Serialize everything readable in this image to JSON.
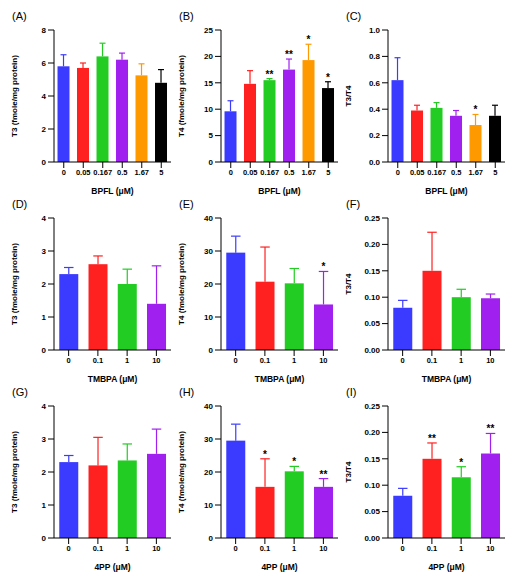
{
  "chart_data": [
    {
      "type": "bar",
      "title": "(A)",
      "x_label": "BPFL (μM)",
      "y_label": "T3 (fmole/mg protein)",
      "categories": [
        "0",
        "0.05",
        "0.167",
        "0.5",
        "1.67",
        "5"
      ],
      "values": [
        5.8,
        5.7,
        6.4,
        6.2,
        5.25,
        4.8
      ],
      "errors": [
        0.7,
        0.3,
        0.8,
        0.4,
        0.7,
        0.8
      ],
      "significance": [
        null,
        null,
        null,
        null,
        null,
        null
      ],
      "colors": [
        "#3b3bff",
        "#ff2020",
        "#22cc22",
        "#a020f0",
        "#ff9900",
        "#000000"
      ],
      "ylim": [
        0,
        8
      ],
      "yticks": [
        0,
        2,
        4,
        6,
        8
      ]
    },
    {
      "type": "bar",
      "title": "(B)",
      "x_label": "BPFL (μM)",
      "y_label": "T4 (fmole/mg protein)",
      "categories": [
        "0",
        "0.05",
        "0.167",
        "0.5",
        "1.67",
        "5"
      ],
      "values": [
        9.6,
        14.8,
        15.5,
        17.5,
        19.3,
        14
      ],
      "errors": [
        2,
        2.5,
        0.3,
        2,
        3,
        1.2
      ],
      "significance": [
        null,
        null,
        "**",
        "**",
        "*",
        "*"
      ],
      "colors": [
        "#3b3bff",
        "#ff2020",
        "#22cc22",
        "#a020f0",
        "#ff9900",
        "#000000"
      ],
      "ylim": [
        0,
        25
      ],
      "yticks": [
        0,
        5,
        10,
        15,
        20,
        25
      ]
    },
    {
      "type": "bar",
      "title": "(C)",
      "x_label": "BPFL (μM)",
      "y_label": "T3/T4",
      "categories": [
        "0",
        "0.05",
        "0.167",
        "0.5",
        "1.67",
        "5"
      ],
      "values": [
        0.62,
        0.39,
        0.41,
        0.35,
        0.28,
        0.35
      ],
      "errors": [
        0.17,
        0.04,
        0.04,
        0.04,
        0.08,
        0.08
      ],
      "significance": [
        null,
        null,
        null,
        null,
        "*",
        null
      ],
      "colors": [
        "#3b3bff",
        "#ff2020",
        "#22cc22",
        "#a020f0",
        "#ff9900",
        "#000000"
      ],
      "ylim": [
        0,
        1
      ],
      "yticks": [
        {
          "value": 0,
          "label": "0.0"
        },
        0.2,
        0.4,
        0.6,
        0.8,
        {
          "value": 1,
          "label": "1.0"
        }
      ]
    },
    {
      "type": "bar",
      "title": "(D)",
      "x_label": "TMBPA (μM)",
      "y_label": "T3 (fmole/mg protein)",
      "categories": [
        "0",
        "0.1",
        "1",
        "10"
      ],
      "values": [
        2.3,
        2.6,
        2.0,
        1.4
      ],
      "errors": [
        0.2,
        0.25,
        0.45,
        1.15
      ],
      "significance": [
        null,
        null,
        null,
        null
      ],
      "colors": [
        "#3b3bff",
        "#ff2020",
        "#22cc22",
        "#a020f0"
      ],
      "ylim": [
        0,
        4
      ],
      "yticks": [
        0,
        1,
        2,
        3,
        4
      ]
    },
    {
      "type": "bar",
      "title": "(E)",
      "x_label": "TMBPA (μM)",
      "y_label": "T4 (fmole/mg protein)",
      "categories": [
        "0",
        "0.1",
        "1",
        "10"
      ],
      "values": [
        29.5,
        20.7,
        20.2,
        13.8
      ],
      "errors": [
        5,
        10.5,
        4.5,
        10
      ],
      "significance": [
        null,
        null,
        null,
        "*"
      ],
      "colors": [
        "#3b3bff",
        "#ff2020",
        "#22cc22",
        "#a020f0"
      ],
      "ylim": [
        0,
        40
      ],
      "yticks": [
        0,
        10,
        20,
        30,
        40
      ]
    },
    {
      "type": "bar",
      "title": "(F)",
      "x_label": "TMBPA (μM)",
      "y_label": "T3/T4",
      "categories": [
        "0",
        "0.1",
        "1",
        "10"
      ],
      "values": [
        0.08,
        0.15,
        0.1,
        0.098
      ],
      "errors": [
        0.014,
        0.073,
        0.015,
        0.008
      ],
      "significance": [
        null,
        null,
        null,
        null
      ],
      "colors": [
        "#3b3bff",
        "#ff2020",
        "#22cc22",
        "#a020f0"
      ],
      "ylim": [
        0,
        0.25
      ],
      "yticks": [
        {
          "value": 0,
          "label": "0.00"
        },
        {
          "value": 0.05,
          "label": "0.05"
        },
        {
          "value": 0.1,
          "label": "0.10"
        },
        {
          "value": 0.15,
          "label": "0.15"
        },
        {
          "value": 0.2,
          "label": "0.20"
        },
        {
          "value": 0.25,
          "label": "0.25"
        }
      ]
    },
    {
      "type": "bar",
      "title": "(G)",
      "x_label": "4PP (μM)",
      "y_label": "T3 (fmole/mg protein)",
      "categories": [
        "0",
        "0.1",
        "1",
        "10"
      ],
      "values": [
        2.3,
        2.2,
        2.35,
        2.55
      ],
      "errors": [
        0.2,
        0.85,
        0.5,
        0.75
      ],
      "significance": [
        null,
        null,
        null,
        null
      ],
      "colors": [
        "#3b3bff",
        "#ff2020",
        "#22cc22",
        "#a020f0"
      ],
      "ylim": [
        0,
        4
      ],
      "yticks": [
        0,
        1,
        2,
        3,
        4
      ]
    },
    {
      "type": "bar",
      "title": "(H)",
      "x_label": "4PP (μM)",
      "y_label": "T4 (fmole/mg protein)",
      "categories": [
        "0",
        "0.1",
        "1",
        "10"
      ],
      "values": [
        29.5,
        15.5,
        20.2,
        15.5
      ],
      "errors": [
        5,
        8.5,
        1.5,
        2.5
      ],
      "significance": [
        null,
        "*",
        "*",
        "**"
      ],
      "colors": [
        "#3b3bff",
        "#ff2020",
        "#22cc22",
        "#a020f0"
      ],
      "ylim": [
        0,
        40
      ],
      "yticks": [
        0,
        10,
        20,
        30,
        40
      ]
    },
    {
      "type": "bar",
      "title": "(I)",
      "x_label": "4PP (μM)",
      "y_label": "T3/T4",
      "categories": [
        "0",
        "0.1",
        "1",
        "10"
      ],
      "values": [
        0.08,
        0.15,
        0.115,
        0.16
      ],
      "errors": [
        0.014,
        0.03,
        0.02,
        0.038
      ],
      "significance": [
        null,
        "**",
        "*",
        "**"
      ],
      "colors": [
        "#3b3bff",
        "#ff2020",
        "#22cc22",
        "#a020f0"
      ],
      "ylim": [
        0,
        0.25
      ],
      "yticks": [
        {
          "value": 0,
          "label": "0.00"
        },
        {
          "value": 0.05,
          "label": "0.05"
        },
        {
          "value": 0.1,
          "label": "0.10"
        },
        {
          "value": 0.15,
          "label": "0.15"
        },
        {
          "value": 0.2,
          "label": "0.20"
        },
        {
          "value": 0.25,
          "label": "0.25"
        }
      ]
    }
  ]
}
